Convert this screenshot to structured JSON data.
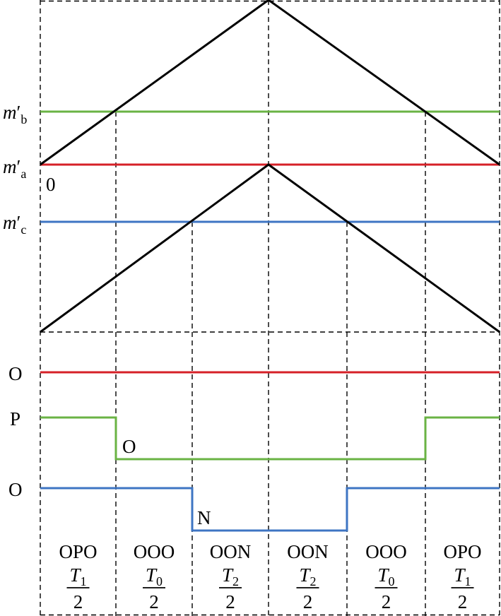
{
  "carrier_labels": {
    "mb": {
      "base": "m",
      "sub": "b"
    },
    "ma": {
      "base": "m",
      "sub": "a"
    },
    "mc": {
      "base": "m",
      "sub": "c"
    },
    "zero": "0"
  },
  "phase_levels": {
    "a": {
      "level": "O"
    },
    "b": {
      "start": "P",
      "middle": "O"
    },
    "c": {
      "start": "O",
      "middle": "N"
    }
  },
  "segments": [
    {
      "state": "OPO",
      "t": "T",
      "sub": "1",
      "den": "2"
    },
    {
      "state": "OOO",
      "t": "T",
      "sub": "0",
      "den": "2"
    },
    {
      "state": "OON",
      "t": "T",
      "sub": "2",
      "den": "2"
    },
    {
      "state": "OON",
      "t": "T",
      "sub": "2",
      "den": "2"
    },
    {
      "state": "OOO",
      "t": "T",
      "sub": "0",
      "den": "2"
    },
    {
      "state": "OPO",
      "t": "T",
      "sub": "1",
      "den": "2"
    }
  ],
  "colors": {
    "a": "#d62027",
    "b": "#6ab344",
    "c": "#3e75c3",
    "carrier": "#000000",
    "grid": "#000000"
  }
}
